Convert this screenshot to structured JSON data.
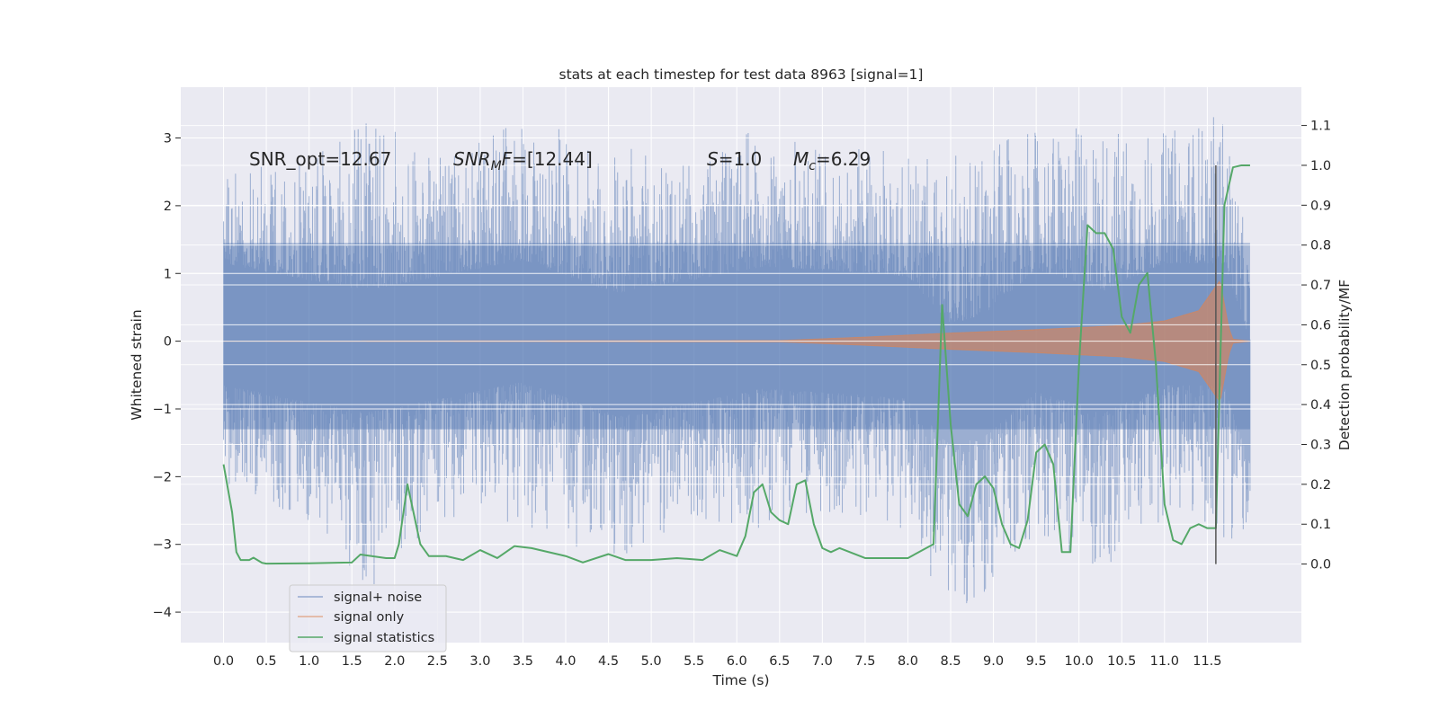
{
  "chart_data": {
    "type": "line",
    "title": "stats at each timestep for test data 8963 [signal=1]",
    "xlabel": "Time (s)",
    "ylabel": "Whitened strain",
    "y2label": "Detection probability/MF",
    "xlim": [
      -0.5,
      12.6
    ],
    "ylim": [
      -4.45,
      3.75
    ],
    "y2lim": [
      -0.197,
      1.196
    ],
    "x_ticks": [
      0.0,
      0.5,
      1.0,
      1.5,
      2.0,
      2.5,
      3.0,
      3.5,
      4.0,
      4.5,
      5.0,
      5.5,
      6.0,
      6.5,
      7.0,
      7.5,
      8.0,
      8.5,
      9.0,
      9.5,
      10.0,
      10.5,
      11.0,
      11.5
    ],
    "x_tick_labels": [
      "0.0",
      "0.5",
      "1.0",
      "1.5",
      "2.0",
      "2.5",
      "3.0",
      "3.5",
      "4.0",
      "4.5",
      "5.0",
      "5.5",
      "6.0",
      "6.5",
      "7.0",
      "7.5",
      "8.0",
      "8.5",
      "9.0",
      "9.5",
      "10.0",
      "10.5",
      "11.0",
      "11.5"
    ],
    "y_ticks": [
      -4,
      -3,
      -2,
      -1,
      0,
      1,
      2,
      3
    ],
    "y_tick_labels": [
      "−4",
      "−3",
      "−2",
      "−1",
      "0",
      "1",
      "2",
      "3"
    ],
    "y2_ticks": [
      0.0,
      0.1,
      0.2,
      0.3,
      0.4,
      0.5,
      0.6,
      0.7,
      0.8,
      0.9,
      1.0,
      1.1
    ],
    "y2_tick_labels": [
      "0.0",
      "0.1",
      "0.2",
      "0.3",
      "0.4",
      "0.5",
      "0.6",
      "0.7",
      "0.8",
      "0.9",
      "1.0",
      "1.1"
    ],
    "grid": true,
    "legend_position": "lower-left",
    "colors": {
      "noise": "#4c72b0",
      "signal": "#dd8452",
      "stats": "#55a868",
      "marker": "#555555",
      "axes_bg": "#eaeaf2",
      "grid": "#ffffff"
    },
    "signal_noise": {
      "x_range": [
        0.0,
        12.0
      ],
      "envelope": [
        [
          0.0,
          -2.1,
          2.6
        ],
        [
          1.0,
          -2.7,
          2.7
        ],
        [
          1.7,
          -3.7,
          3.4
        ],
        [
          2.5,
          -2.6,
          2.7
        ],
        [
          3.5,
          -2.7,
          3.3
        ],
        [
          4.6,
          -3.3,
          2.9
        ],
        [
          5.5,
          -2.6,
          2.6
        ],
        [
          6.3,
          -2.8,
          3.2
        ],
        [
          7.0,
          -2.5,
          2.8
        ],
        [
          8.0,
          -2.8,
          2.9
        ],
        [
          8.5,
          -4.1,
          2.8
        ],
        [
          8.9,
          -3.9,
          2.9
        ],
        [
          9.5,
          -2.8,
          3.1
        ],
        [
          10.3,
          -3.5,
          3.2
        ],
        [
          11.0,
          -2.6,
          3.1
        ],
        [
          11.7,
          -2.9,
          3.4
        ],
        [
          12.0,
          -3.0,
          1.2
        ]
      ]
    },
    "signal_only": {
      "amplitude": [
        [
          0.0,
          0.0
        ],
        [
          6.5,
          0.01
        ],
        [
          7.5,
          0.06
        ],
        [
          8.5,
          0.12
        ],
        [
          9.5,
          0.17
        ],
        [
          10.5,
          0.23
        ],
        [
          11.0,
          0.3
        ],
        [
          11.4,
          0.45
        ],
        [
          11.65,
          0.9
        ],
        [
          11.75,
          0.2
        ],
        [
          11.8,
          0.03
        ],
        [
          12.0,
          0.0
        ]
      ]
    },
    "signal_statistics": {
      "x": [
        0.0,
        0.1,
        0.15,
        0.2,
        0.3,
        0.35,
        0.45,
        0.5,
        1.0,
        1.5,
        1.6,
        1.9,
        2.0,
        2.05,
        2.15,
        2.3,
        2.4,
        2.6,
        2.8,
        3.0,
        3.2,
        3.4,
        3.6,
        4.0,
        4.2,
        4.5,
        4.7,
        5.0,
        5.3,
        5.6,
        5.8,
        6.0,
        6.1,
        6.2,
        6.3,
        6.4,
        6.5,
        6.6,
        6.7,
        6.8,
        6.9,
        7.0,
        7.1,
        7.2,
        7.5,
        8.0,
        8.3,
        8.4,
        8.5,
        8.6,
        8.7,
        8.8,
        8.9,
        9.0,
        9.1,
        9.2,
        9.3,
        9.4,
        9.5,
        9.6,
        9.7,
        9.8,
        9.9,
        10.0,
        10.1,
        10.2,
        10.3,
        10.4,
        10.5,
        10.6,
        10.7,
        10.8,
        10.9,
        11.0,
        11.1,
        11.2,
        11.3,
        11.4,
        11.5,
        11.6,
        11.7,
        11.8,
        11.9,
        12.0
      ],
      "y": [
        0.25,
        0.13,
        0.03,
        0.01,
        0.01,
        0.016,
        0.003,
        0.001,
        0.002,
        0.004,
        0.024,
        0.015,
        0.015,
        0.05,
        0.2,
        0.05,
        0.02,
        0.02,
        0.01,
        0.035,
        0.015,
        0.045,
        0.04,
        0.02,
        0.004,
        0.025,
        0.01,
        0.01,
        0.015,
        0.01,
        0.035,
        0.02,
        0.07,
        0.18,
        0.2,
        0.13,
        0.11,
        0.1,
        0.2,
        0.21,
        0.1,
        0.04,
        0.03,
        0.04,
        0.015,
        0.015,
        0.05,
        0.65,
        0.35,
        0.15,
        0.12,
        0.2,
        0.22,
        0.19,
        0.1,
        0.05,
        0.04,
        0.11,
        0.28,
        0.3,
        0.25,
        0.03,
        0.03,
        0.5,
        0.85,
        0.83,
        0.83,
        0.79,
        0.62,
        0.58,
        0.7,
        0.73,
        0.5,
        0.15,
        0.06,
        0.05,
        0.09,
        0.1,
        0.09,
        0.09,
        0.9,
        0.995,
        1.0,
        1.0
      ]
    },
    "marker_line_x": 11.6,
    "annotations": {
      "snr_opt": "SNR_opt=12.67",
      "snr_mf": "=[12.44]",
      "s_val": "=1.0",
      "mc_val": "=6.29"
    },
    "legend": [
      "signal+ noise",
      "signal only",
      "signal statistics"
    ]
  }
}
